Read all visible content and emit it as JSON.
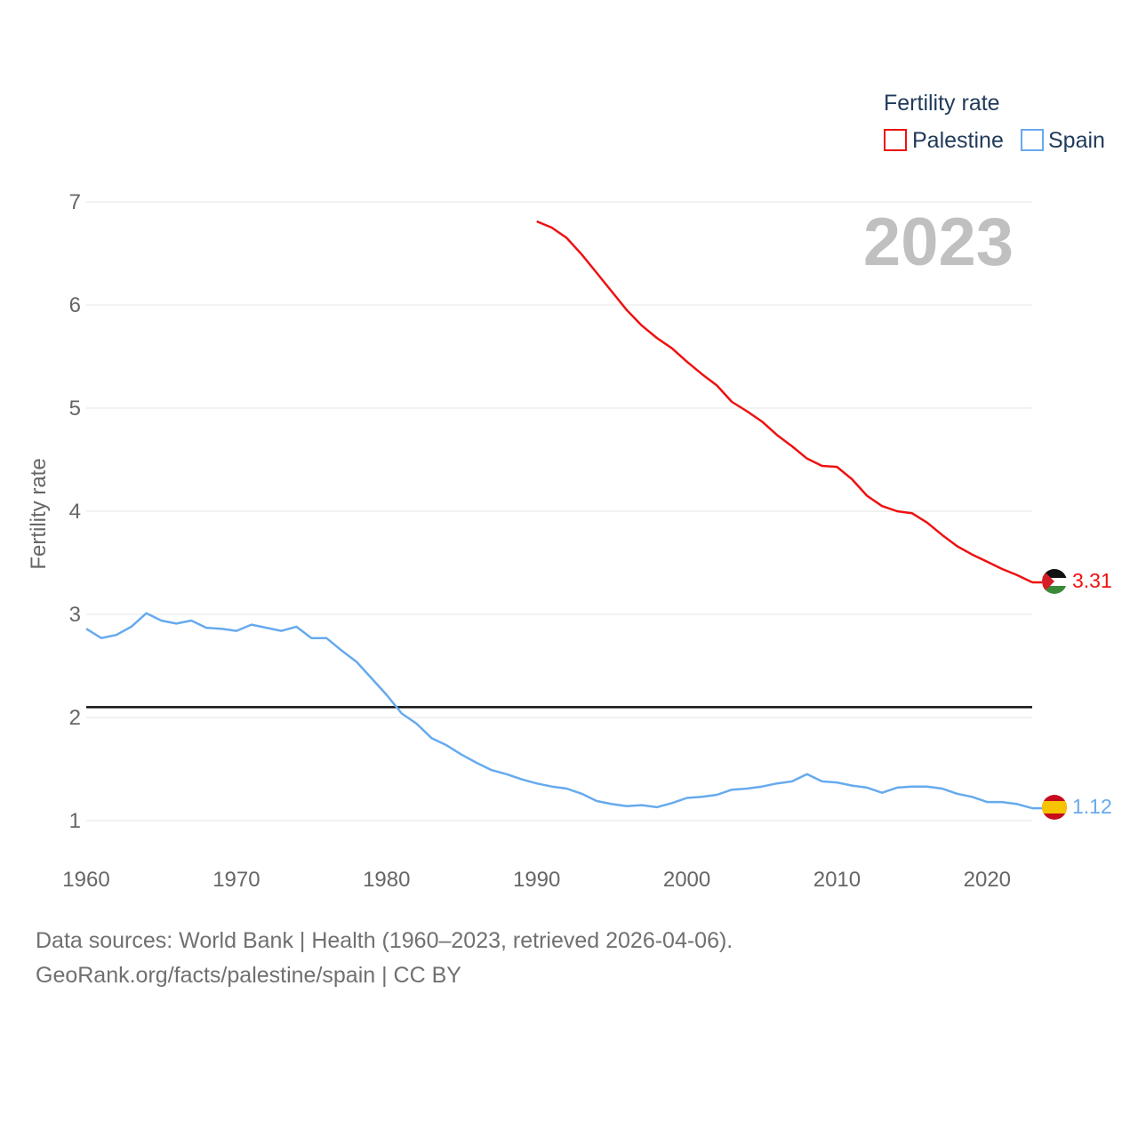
{
  "chart_data": {
    "type": "line",
    "title": "",
    "legend_title": "Fertility rate",
    "ylabel": "Fertility rate",
    "xlabel": "",
    "xlim": [
      1960,
      2023
    ],
    "ylim": [
      0.55,
      7.0
    ],
    "x_ticks": [
      1960,
      1970,
      1980,
      1990,
      2000,
      2010,
      2020
    ],
    "y_ticks": [
      1,
      2,
      3,
      4,
      5,
      6,
      7
    ],
    "year_label": "2023",
    "reference_line": {
      "value": 2.1
    },
    "series": [
      {
        "name": "Palestine",
        "color": "#ee1111",
        "end_label": "3.31",
        "x": [
          1990,
          1991,
          1992,
          1993,
          1994,
          1995,
          1996,
          1997,
          1998,
          1999,
          2000,
          2001,
          2002,
          2003,
          2004,
          2005,
          2006,
          2007,
          2008,
          2009,
          2010,
          2011,
          2012,
          2013,
          2014,
          2015,
          2016,
          2017,
          2018,
          2019,
          2020,
          2021,
          2022,
          2023
        ],
        "values": [
          6.81,
          6.75,
          6.65,
          6.49,
          6.31,
          6.13,
          5.95,
          5.8,
          5.68,
          5.58,
          5.45,
          5.33,
          5.22,
          5.06,
          4.97,
          4.87,
          4.74,
          4.63,
          4.51,
          4.44,
          4.43,
          4.31,
          4.15,
          4.05,
          4.0,
          3.98,
          3.89,
          3.77,
          3.66,
          3.58,
          3.51,
          3.44,
          3.38,
          3.31
        ]
      },
      {
        "name": "Spain",
        "color": "#66aaee",
        "end_label": "1.12",
        "x": [
          1960,
          1961,
          1962,
          1963,
          1964,
          1965,
          1966,
          1967,
          1968,
          1969,
          1970,
          1971,
          1972,
          1973,
          1974,
          1975,
          1976,
          1977,
          1978,
          1979,
          1980,
          1981,
          1982,
          1983,
          1984,
          1985,
          1986,
          1987,
          1988,
          1989,
          1990,
          1991,
          1992,
          1993,
          1994,
          1995,
          1996,
          1997,
          1998,
          1999,
          2000,
          2001,
          2002,
          2003,
          2004,
          2005,
          2006,
          2007,
          2008,
          2009,
          2010,
          2011,
          2012,
          2013,
          2014,
          2015,
          2016,
          2017,
          2018,
          2019,
          2020,
          2021,
          2022,
          2023
        ],
        "values": [
          2.86,
          2.77,
          2.8,
          2.88,
          3.01,
          2.94,
          2.91,
          2.94,
          2.87,
          2.86,
          2.84,
          2.9,
          2.87,
          2.84,
          2.88,
          2.77,
          2.77,
          2.65,
          2.54,
          2.38,
          2.22,
          2.04,
          1.94,
          1.8,
          1.73,
          1.64,
          1.56,
          1.49,
          1.45,
          1.4,
          1.36,
          1.33,
          1.31,
          1.26,
          1.19,
          1.16,
          1.14,
          1.15,
          1.13,
          1.17,
          1.22,
          1.23,
          1.25,
          1.3,
          1.31,
          1.33,
          1.36,
          1.38,
          1.45,
          1.38,
          1.37,
          1.34,
          1.32,
          1.27,
          1.32,
          1.33,
          1.33,
          1.31,
          1.26,
          1.23,
          1.18,
          1.18,
          1.16,
          1.12
        ]
      }
    ]
  },
  "footer": {
    "sources": "Data sources: World Bank | Health (1960–2023, retrieved 2026-04-06).",
    "attribution": "GeoRank.org/facts/palestine/spain | CC BY"
  }
}
